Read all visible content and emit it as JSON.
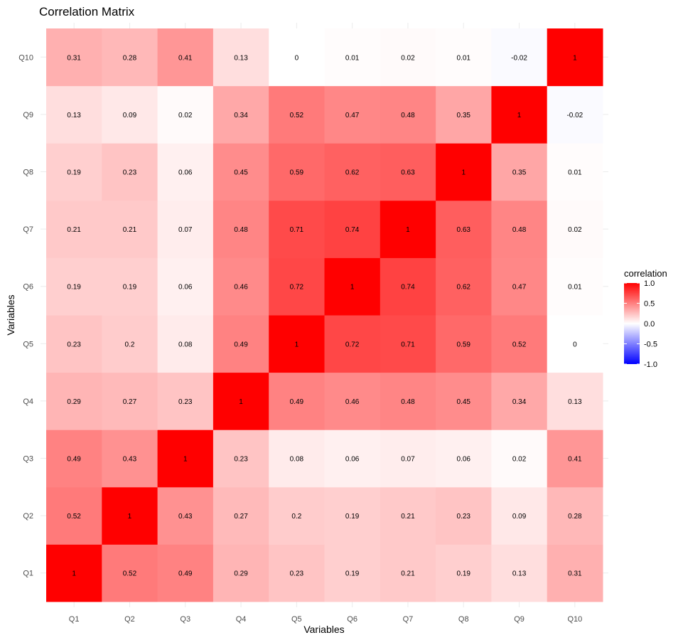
{
  "chart_data": {
    "type": "heatmap",
    "title": "Correlation Matrix",
    "xlabel": "Variables",
    "ylabel": "Variables",
    "categories": [
      "Q1",
      "Q2",
      "Q3",
      "Q4",
      "Q5",
      "Q6",
      "Q7",
      "Q8",
      "Q9",
      "Q10"
    ],
    "matrix": [
      [
        1,
        0.52,
        0.49,
        0.29,
        0.23,
        0.19,
        0.21,
        0.19,
        0.13,
        0.31
      ],
      [
        0.52,
        1,
        0.43,
        0.27,
        0.2,
        0.19,
        0.21,
        0.23,
        0.09,
        0.28
      ],
      [
        0.49,
        0.43,
        1,
        0.23,
        0.08,
        0.06,
        0.07,
        0.06,
        0.02,
        0.41
      ],
      [
        0.29,
        0.27,
        0.23,
        1,
        0.49,
        0.46,
        0.48,
        0.45,
        0.34,
        0.13
      ],
      [
        0.23,
        0.2,
        0.08,
        0.49,
        1,
        0.72,
        0.71,
        0.59,
        0.52,
        0
      ],
      [
        0.19,
        0.19,
        0.06,
        0.46,
        0.72,
        1,
        0.74,
        0.62,
        0.47,
        0.01
      ],
      [
        0.21,
        0.21,
        0.07,
        0.48,
        0.71,
        0.74,
        1,
        0.63,
        0.48,
        0.02
      ],
      [
        0.19,
        0.23,
        0.06,
        0.45,
        0.59,
        0.62,
        0.63,
        1,
        0.35,
        0.01
      ],
      [
        0.13,
        0.09,
        0.02,
        0.34,
        0.52,
        0.47,
        0.48,
        0.35,
        1,
        -0.02
      ],
      [
        0.31,
        0.28,
        0.41,
        0.13,
        0,
        0.01,
        0.02,
        0.01,
        -0.02,
        1
      ]
    ],
    "legend": {
      "title": "correlation",
      "range": [
        -1,
        1
      ],
      "ticks": [
        "1.0",
        "0.5",
        "0.0",
        "-0.5",
        "-1.0"
      ],
      "low_color": "#0000ff",
      "mid_color": "#ffffff",
      "high_color": "#ff0000",
      "position": "right"
    },
    "grid": true
  }
}
